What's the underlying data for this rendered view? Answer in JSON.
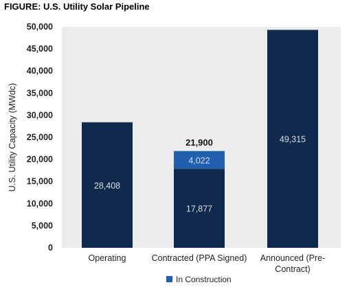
{
  "chart_data": {
    "type": "bar",
    "stacked": true,
    "title": "FIGURE: U.S. Utility Solar Pipeline",
    "ylabel": "U.S. Utility Capacity (MWdc)",
    "xlabel": "",
    "ylim": [
      0,
      50000
    ],
    "yticks": [
      0,
      5000,
      10000,
      15000,
      20000,
      25000,
      30000,
      35000,
      40000,
      45000,
      50000
    ],
    "ytick_labels": [
      "0",
      "5,000",
      "10,000",
      "15,000",
      "20,000",
      "25,000",
      "30,000",
      "35,000",
      "40,000",
      "45,000",
      "50,000"
    ],
    "categories": [
      "Operating",
      "Contracted (PPA Signed)",
      "Announced (Pre-Contract)"
    ],
    "category_lines": [
      [
        "Operating"
      ],
      [
        "Contracted (PPA Signed)"
      ],
      [
        "Announced (Pre-",
        "Contract)"
      ]
    ],
    "series": [
      {
        "values": [
          28408,
          17877,
          49315
        ],
        "labels": [
          "28,408",
          "17,877",
          "49,315"
        ],
        "color": "#0f2a4c"
      },
      {
        "name": "In Construction",
        "values": [
          0,
          4022,
          0
        ],
        "labels": [
          "",
          "4,022",
          ""
        ],
        "color": "#1f5fad"
      }
    ],
    "totals": [
      {
        "category_index": 1,
        "label": "21,900"
      }
    ],
    "plot_background": "#ececec",
    "grid": false,
    "legend_position": "bottom"
  }
}
